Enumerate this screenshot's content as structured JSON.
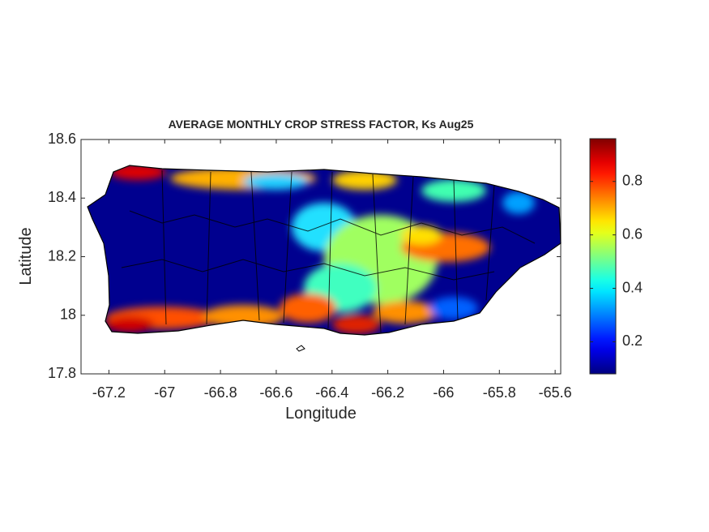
{
  "chart_data": {
    "type": "map",
    "title": "AVERAGE MONTHLY CROP STRESS FACTOR, Ks Aug25",
    "x_label": "Longitude",
    "y_label": "Latitude",
    "xlim": [
      -67.3,
      -65.58
    ],
    "xticks": [
      -67.2,
      -67,
      -66.8,
      -66.6,
      -66.4,
      -66.2,
      -66,
      -65.8,
      -65.6
    ],
    "ylim": [
      17.8,
      18.6
    ],
    "yticks": [
      17.8,
      18,
      18.2,
      18.4,
      18.6
    ],
    "colorbar": {
      "colormap": "jet",
      "clim": [
        0.08,
        0.96
      ],
      "ticks": [
        0.2,
        0.4,
        0.6,
        0.8
      ]
    }
  }
}
